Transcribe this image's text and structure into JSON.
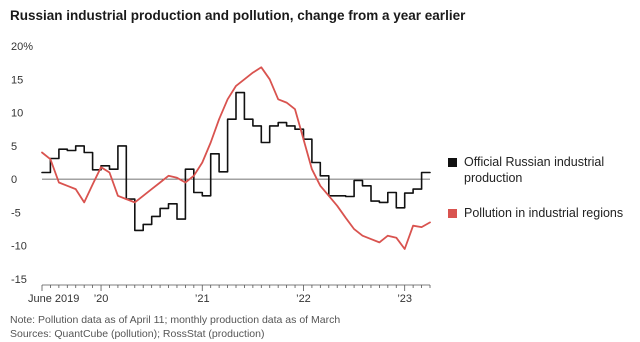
{
  "chart_data": {
    "type": "line",
    "title": "Russian industrial production and pollution, change from a year earlier",
    "xlabel": "",
    "ylabel": "",
    "ylim": [
      -15,
      20
    ],
    "y_ticks": [
      {
        "value": 20,
        "label": "20%"
      },
      {
        "value": 15,
        "label": "15"
      },
      {
        "value": 10,
        "label": "10"
      },
      {
        "value": 5,
        "label": "5"
      },
      {
        "value": 0,
        "label": "0"
      },
      {
        "value": -5,
        "label": "-5"
      },
      {
        "value": -10,
        "label": "-10"
      },
      {
        "value": -15,
        "label": "-15"
      }
    ],
    "xlim": [
      "2019-06",
      "2023-04"
    ],
    "x_ticks": [
      {
        "date": "2019-06",
        "label": "June 2019"
      },
      {
        "date": "2020-01",
        "label": "’20"
      },
      {
        "date": "2021-01",
        "label": "’21"
      },
      {
        "date": "2022-01",
        "label": "’22"
      },
      {
        "date": "2023-01",
        "label": "’23"
      }
    ],
    "grid": false,
    "legend_position": "right",
    "series": [
      {
        "name": "Official Russian industrial production",
        "color": "#111111",
        "style": "step",
        "x": [
          "2019-06",
          "2019-07",
          "2019-08",
          "2019-09",
          "2019-10",
          "2019-11",
          "2019-12",
          "2020-01",
          "2020-02",
          "2020-03",
          "2020-04",
          "2020-05",
          "2020-06",
          "2020-07",
          "2020-08",
          "2020-09",
          "2020-10",
          "2020-11",
          "2020-12",
          "2021-01",
          "2021-02",
          "2021-03",
          "2021-04",
          "2021-05",
          "2021-06",
          "2021-07",
          "2021-08",
          "2021-09",
          "2021-10",
          "2021-11",
          "2021-12",
          "2022-01",
          "2022-02",
          "2022-03",
          "2022-04",
          "2022-05",
          "2022-06",
          "2022-07",
          "2022-08",
          "2022-09",
          "2022-10",
          "2022-11",
          "2022-12",
          "2023-01",
          "2023-02",
          "2023-03"
        ],
        "values": [
          1.0,
          3.1,
          4.5,
          4.3,
          5.0,
          4.0,
          1.4,
          2.0,
          1.5,
          5.0,
          -3.0,
          -7.7,
          -6.8,
          -5.6,
          -4.4,
          -3.7,
          -6.0,
          1.5,
          -2.0,
          -2.5,
          3.8,
          1.1,
          9.0,
          13.0,
          9.0,
          8.0,
          5.5,
          8.0,
          8.5,
          8.0,
          7.5,
          6.0,
          2.5,
          0.5,
          -2.5,
          -2.5,
          -2.6,
          -0.2,
          -1.0,
          -3.3,
          -3.5,
          -2.0,
          -4.3,
          -2.1,
          -1.5,
          1.0
        ]
      },
      {
        "name": "Pollution in industrial regions",
        "color": "#d9534f",
        "style": "line",
        "x": [
          "2019-06",
          "2019-07",
          "2019-08",
          "2019-09",
          "2019-10",
          "2019-11",
          "2019-12",
          "2020-01",
          "2020-02",
          "2020-03",
          "2020-04",
          "2020-05",
          "2020-06",
          "2020-07",
          "2020-08",
          "2020-09",
          "2020-10",
          "2020-11",
          "2020-12",
          "2021-01",
          "2021-02",
          "2021-03",
          "2021-04",
          "2021-05",
          "2021-06",
          "2021-07",
          "2021-08",
          "2021-09",
          "2021-10",
          "2021-11",
          "2021-12",
          "2022-01",
          "2022-02",
          "2022-03",
          "2022-04",
          "2022-05",
          "2022-06",
          "2022-07",
          "2022-08",
          "2022-09",
          "2022-10",
          "2022-11",
          "2022-12",
          "2023-01",
          "2023-02",
          "2023-03",
          "2023-04"
        ],
        "values": [
          4.0,
          3.0,
          -0.5,
          -1.0,
          -1.5,
          -3.5,
          -0.8,
          1.8,
          1.0,
          -2.5,
          -3.0,
          -3.5,
          -2.5,
          -1.5,
          -0.5,
          0.5,
          0.2,
          -0.5,
          0.5,
          2.5,
          5.5,
          9.0,
          12.0,
          14.0,
          15.0,
          16.0,
          16.8,
          15.0,
          12.0,
          11.5,
          10.5,
          6.0,
          1.5,
          -1.0,
          -2.5,
          -4.0,
          -5.8,
          -7.5,
          -8.5,
          -9.0,
          -9.5,
          -8.5,
          -8.8,
          -10.5,
          -7.0,
          -7.2,
          -6.5
        ]
      }
    ]
  },
  "legend": [
    {
      "label": "Official Russian industrial production",
      "color": "#111111"
    },
    {
      "label": "Pollution in industrial regions",
      "color": "#d9534f"
    }
  ],
  "notes": {
    "line1": "Note: Pollution data as of April 11; monthly production data as of March",
    "line2": "Sources: QuantCube (pollution); RossStat (production)"
  }
}
